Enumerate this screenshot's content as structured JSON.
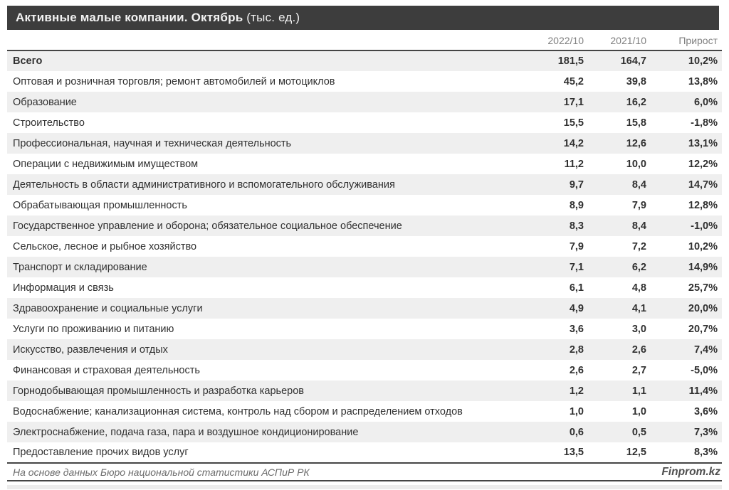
{
  "header": {
    "title_main": "Активные малые компании. Октябрь",
    "title_unit": " (тыс. ед.)"
  },
  "chart_data": {
    "type": "table",
    "title": "Активные малые компании. Октябрь (тыс. ед.)",
    "unit": "тыс. ед.",
    "columns": [
      "2022/10",
      "2021/10",
      "Прирост"
    ],
    "rows": [
      {
        "label": "Всего",
        "v2022": "181,5",
        "v2021": "164,7",
        "growth": "10,2%",
        "total": true
      },
      {
        "label": "Оптовая и розничная торговля; ремонт автомобилей и мотоциклов",
        "v2022": "45,2",
        "v2021": "39,8",
        "growth": "13,8%"
      },
      {
        "label": "Образование",
        "v2022": "17,1",
        "v2021": "16,2",
        "growth": "6,0%"
      },
      {
        "label": "Строительство",
        "v2022": "15,5",
        "v2021": "15,8",
        "growth": "-1,8%"
      },
      {
        "label": "Профессиональная, научная и техническая деятельность",
        "v2022": "14,2",
        "v2021": "12,6",
        "growth": "13,1%"
      },
      {
        "label": "Операции с недвижимым имуществом",
        "v2022": "11,2",
        "v2021": "10,0",
        "growth": "12,2%"
      },
      {
        "label": "Деятельность в области административного и вспомогательного обслуживания",
        "v2022": "9,7",
        "v2021": "8,4",
        "growth": "14,7%"
      },
      {
        "label": "Обрабатывающая промышленность",
        "v2022": "8,9",
        "v2021": "7,9",
        "growth": "12,8%"
      },
      {
        "label": "Государственное управление и оборона; обязательное социальное обеспечение",
        "v2022": "8,3",
        "v2021": "8,4",
        "growth": "-1,0%"
      },
      {
        "label": "Сельское, лесное и рыбное хозяйство",
        "v2022": "7,9",
        "v2021": "7,2",
        "growth": "10,2%"
      },
      {
        "label": "Транспорт и складирование",
        "v2022": "7,1",
        "v2021": "6,2",
        "growth": "14,9%"
      },
      {
        "label": "Информация и связь",
        "v2022": "6,1",
        "v2021": "4,8",
        "growth": "25,7%"
      },
      {
        "label": "Здравоохранение и социальные услуги",
        "v2022": "4,9",
        "v2021": "4,1",
        "growth": "20,0%"
      },
      {
        "label": "Услуги по проживанию и питанию",
        "v2022": "3,6",
        "v2021": "3,0",
        "growth": "20,7%"
      },
      {
        "label": "Искусство, развлечения и отдых",
        "v2022": "2,8",
        "v2021": "2,6",
        "growth": "7,4%"
      },
      {
        "label": "Финансовая и страховая деятельность",
        "v2022": "2,6",
        "v2021": "2,7",
        "growth": "-5,0%"
      },
      {
        "label": "Горнодобывающая промышленность и разработка карьеров",
        "v2022": "1,2",
        "v2021": "1,1",
        "growth": "11,4%"
      },
      {
        "label": "Водоснабжение; канализационная система, контроль над сбором и распределением отходов",
        "v2022": "1,0",
        "v2021": "1,0",
        "growth": "3,6%"
      },
      {
        "label": "Электроснабжение, подача газа, пара и воздушное кондиционирование",
        "v2022": "0,6",
        "v2021": "0,5",
        "growth": "7,3%"
      },
      {
        "label": "Предоставление прочих видов услуг",
        "v2022": "13,5",
        "v2021": "12,5",
        "growth": "8,3%"
      }
    ]
  },
  "footer": {
    "source": "На основе данных Бюро национальной статистики АСПиР РК",
    "brand": "Finprom.kz"
  },
  "colors": {
    "title_bar_bg": "#3d3d3d",
    "title_text": "#f2f2f2",
    "row_stripe": "#efefef",
    "rule": "#454545",
    "column_header_text": "#808080"
  }
}
